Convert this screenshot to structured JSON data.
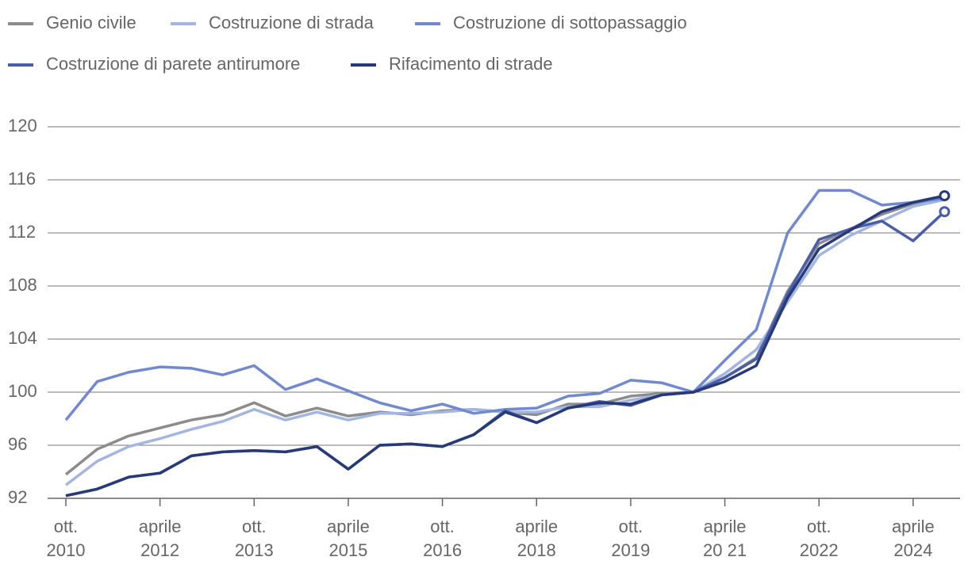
{
  "chart_data": {
    "type": "line",
    "categories": [
      "ott. 2010",
      null,
      null,
      "aprile 2012",
      null,
      null,
      "ott. 2013",
      null,
      null,
      "aprile 2015",
      null,
      null,
      "ott. 2016",
      null,
      null,
      "aprile 2018",
      null,
      null,
      "ott. 2019",
      null,
      null,
      "aprile 20 21",
      null,
      null,
      "ott. 2022",
      null,
      null,
      "aprile 2024",
      null
    ],
    "series": [
      {
        "name": "Genio civile",
        "color": "#8c8c8c",
        "values": [
          93.8,
          95.7,
          96.7,
          97.3,
          97.9,
          98.3,
          99.2,
          98.2,
          98.8,
          98.2,
          98.5,
          98.3,
          98.6,
          98.7,
          98.5,
          98.3,
          99.1,
          99.1,
          99.7,
          99.9,
          100,
          101.1,
          102.6,
          107.6,
          111.2,
          112.3,
          113.4,
          114.2,
          114.7
        ]
      },
      {
        "name": "Costruzione di strada",
        "color": "#a3b5e3",
        "values": [
          93.0,
          94.8,
          95.9,
          96.5,
          97.2,
          97.8,
          98.7,
          97.9,
          98.5,
          97.9,
          98.4,
          98.4,
          98.5,
          98.7,
          98.5,
          98.5,
          98.9,
          98.9,
          99.4,
          99.8,
          100,
          101.4,
          103.2,
          106.8,
          110.3,
          111.8,
          112.9,
          114.0,
          114.5
        ]
      },
      {
        "name": "Costruzione di sottopassaggio",
        "color": "#7089d0",
        "values": [
          97.9,
          100.8,
          101.5,
          101.9,
          101.8,
          101.3,
          102.0,
          100.2,
          101.0,
          100.1,
          99.2,
          98.6,
          99.1,
          98.4,
          98.7,
          98.8,
          99.7,
          99.9,
          100.9,
          100.7,
          100.0,
          102.4,
          104.7,
          112.0,
          115.2,
          115.2,
          114.1,
          114.3,
          114.6
        ]
      },
      {
        "name": "Costruzione di parete antirumore",
        "color": "#4a5ea8",
        "marker_last": true,
        "values": [
          92.2,
          92.7,
          93.6,
          93.9,
          95.2,
          95.5,
          95.6,
          95.5,
          95.9,
          94.2,
          96.0,
          96.1,
          95.9,
          96.8,
          98.6,
          97.7,
          98.8,
          99.3,
          99.0,
          99.8,
          100.0,
          101.1,
          102.5,
          107.4,
          111.5,
          112.3,
          112.9,
          111.4,
          113.6
        ]
      },
      {
        "name": "Rifacimento di strade",
        "color": "#263a7a",
        "marker_last": true,
        "values": [
          92.2,
          92.7,
          93.6,
          93.9,
          95.2,
          95.5,
          95.6,
          95.5,
          95.9,
          94.2,
          96.0,
          96.1,
          95.9,
          96.8,
          98.5,
          97.7,
          98.8,
          99.2,
          99.1,
          99.8,
          100.0,
          100.8,
          102.0,
          107.1,
          110.8,
          112.2,
          113.6,
          114.3,
          114.8
        ]
      }
    ],
    "ylim": [
      92,
      120
    ],
    "yticks": [
      92,
      96,
      100,
      104,
      108,
      112,
      116,
      120
    ],
    "grid": true
  }
}
